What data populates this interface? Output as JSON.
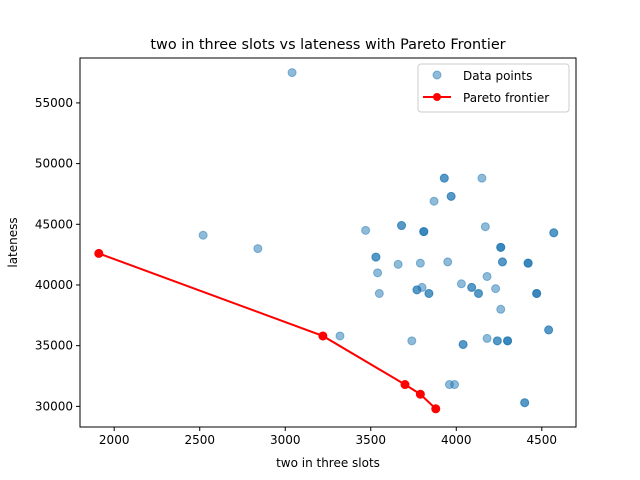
{
  "chart_data": {
    "type": "scatter",
    "title": "two in three slots vs lateness with Pareto Frontier",
    "xlabel": "two in three slots",
    "ylabel": "lateness",
    "xlim": [
      1800,
      4700
    ],
    "ylim": [
      28300,
      58700
    ],
    "xticks": [
      2000,
      2500,
      3000,
      3500,
      4000,
      4500
    ],
    "yticks": [
      30000,
      35000,
      40000,
      45000,
      50000,
      55000
    ],
    "grid": false,
    "legend_position": "top-right",
    "series": [
      {
        "name": "Data points",
        "kind": "scatter",
        "color": "#1f77b4",
        "alpha": 0.5,
        "points": [
          [
            3040,
            57500
          ],
          [
            2520,
            44100
          ],
          [
            2840,
            43000
          ],
          [
            3320,
            35800
          ],
          [
            3470,
            44500
          ],
          [
            3530,
            42300
          ],
          [
            3530,
            42300
          ],
          [
            3540,
            41000
          ],
          [
            3550,
            39300
          ],
          [
            3660,
            41700
          ],
          [
            3680,
            44900
          ],
          [
            3680,
            44900
          ],
          [
            3740,
            35400
          ],
          [
            3770,
            39600
          ],
          [
            3770,
            39600
          ],
          [
            3790,
            41800
          ],
          [
            3800,
            39800
          ],
          [
            3810,
            44400
          ],
          [
            3810,
            44400
          ],
          [
            3810,
            44400
          ],
          [
            3840,
            39300
          ],
          [
            3840,
            39300
          ],
          [
            3870,
            46900
          ],
          [
            3930,
            48800
          ],
          [
            3930,
            48800
          ],
          [
            3950,
            41900
          ],
          [
            3960,
            31800
          ],
          [
            3970,
            47300
          ],
          [
            3970,
            47300
          ],
          [
            3990,
            31800
          ],
          [
            4030,
            40100
          ],
          [
            4040,
            35100
          ],
          [
            4040,
            35100
          ],
          [
            4090,
            39800
          ],
          [
            4090,
            39800
          ],
          [
            4130,
            39300
          ],
          [
            4130,
            39300
          ],
          [
            4150,
            48800
          ],
          [
            4170,
            44800
          ],
          [
            4180,
            40700
          ],
          [
            4180,
            35600
          ],
          [
            4230,
            39700
          ],
          [
            4240,
            35400
          ],
          [
            4240,
            35400
          ],
          [
            4260,
            43100
          ],
          [
            4260,
            43100
          ],
          [
            4260,
            43100
          ],
          [
            4260,
            38000
          ],
          [
            4270,
            41900
          ],
          [
            4270,
            41900
          ],
          [
            4300,
            35400
          ],
          [
            4300,
            35400
          ],
          [
            4300,
            35400
          ],
          [
            4400,
            30300
          ],
          [
            4400,
            30300
          ],
          [
            4420,
            41800
          ],
          [
            4420,
            41800
          ],
          [
            4420,
            41800
          ],
          [
            4470,
            39300
          ],
          [
            4470,
            39300
          ],
          [
            4470,
            39300
          ],
          [
            4540,
            36300
          ],
          [
            4540,
            36300
          ],
          [
            4570,
            44300
          ],
          [
            4570,
            44300
          ]
        ]
      },
      {
        "name": "Pareto frontier",
        "kind": "line",
        "color": "#ff0000",
        "points": [
          [
            1910,
            42600
          ],
          [
            3220,
            35800
          ],
          [
            3700,
            31800
          ],
          [
            3790,
            31000
          ],
          [
            3880,
            29800
          ]
        ]
      }
    ]
  }
}
